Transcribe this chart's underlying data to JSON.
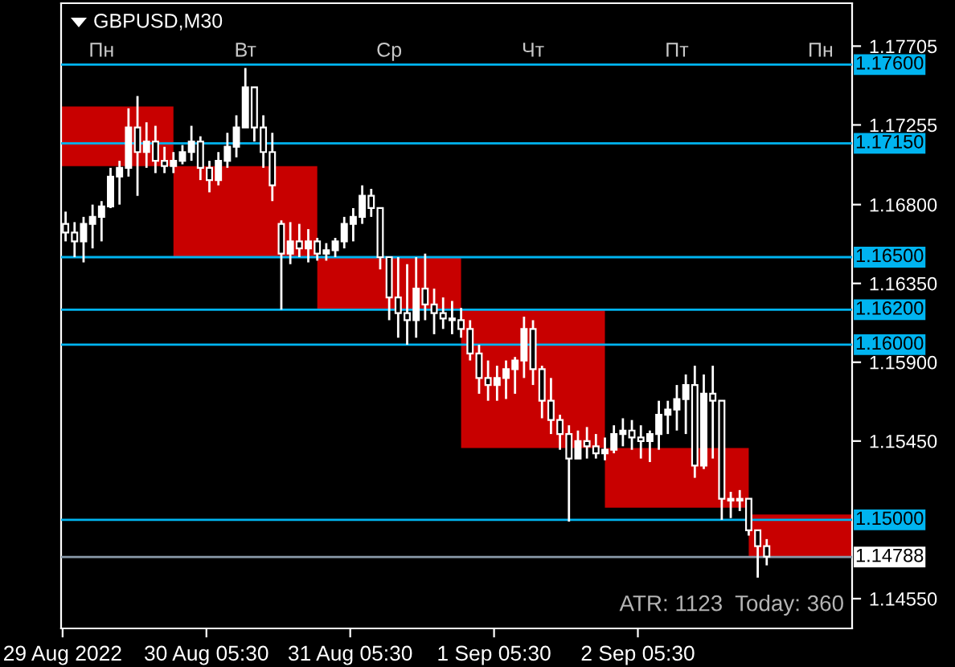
{
  "chart_data": {
    "type": "candlestick",
    "title": "GBPUSD,M30",
    "annotations": [
      "Пн",
      "Вт",
      "Ср",
      "Чт",
      "Пт",
      "Пн",
      "ATR: 1123  Today: 360"
    ],
    "xlim": [
      "2022-08-29T05:15",
      "2022-09-03T17:15"
    ],
    "xticks": [
      {
        "value": "2022-08-29T05:30",
        "label": "29 Aug 2022"
      },
      {
        "value": "2022-08-30T05:30",
        "label": "30 Aug 05:30"
      },
      {
        "value": "2022-08-31T05:30",
        "label": "31 Aug 05:30"
      },
      {
        "value": "2022-09-01T05:30",
        "label": "1 Sep 05:30"
      },
      {
        "value": "2022-09-02T05:30",
        "label": "2 Sep 05:30"
      }
    ],
    "ylim": [
      1.1438,
      1.1795
    ],
    "yticks": [
      {
        "value": 1.17705,
        "label": "1.17705"
      },
      {
        "value": 1.17255,
        "label": "1.17255"
      },
      {
        "value": 1.168,
        "label": "1.16800"
      },
      {
        "value": 1.1635,
        "label": "1.16350"
      },
      {
        "value": 1.159,
        "label": "1.15900"
      },
      {
        "value": 1.1545,
        "label": "1.15450"
      },
      {
        "value": 1.1455,
        "label": "1.14550"
      }
    ],
    "ref_lines": [
      {
        "axis": "y",
        "value": 1.176,
        "label": "1.17600",
        "color": "#00b4f0"
      },
      {
        "axis": "y",
        "value": 1.1715,
        "label": "1.17150",
        "color": "#00b4f0"
      },
      {
        "axis": "y",
        "value": 1.165,
        "label": "1.16500",
        "color": "#00b4f0"
      },
      {
        "axis": "y",
        "value": 1.162,
        "label": "1.16200",
        "color": "#00b4f0"
      },
      {
        "axis": "y",
        "value": 1.16,
        "label": "1.16000",
        "color": "#00b4f0"
      },
      {
        "axis": "y",
        "value": 1.15,
        "label": "1.15000",
        "color": "#00b4f0"
      },
      {
        "axis": "y",
        "value": 1.14788,
        "label": "1.14788",
        "color": "#8a9aaa"
      }
    ],
    "grid": false,
    "legend": false,
    "series": [
      {
        "type": "bar",
        "color": "#c80000",
        "x": [
          "2022-08-29T12:00",
          "2022-08-30T12:00",
          "2022-08-31T12:00",
          "2022-09-01T12:00",
          "2022-09-02T12:00",
          "2022-09-03T12:00"
        ],
        "base": [
          1.1702,
          1.165,
          1.162,
          1.1541,
          1.1507,
          1.1479
        ],
        "values": [
          0.0034,
          0.0052,
          0.003,
          0.0079,
          0.0034,
          0.0024
        ]
      },
      {
        "color": "#ffffff",
        "x": [
          "2022-08-29T06:00",
          "2022-08-29T07:30",
          "2022-08-29T09:00",
          "2022-08-29T10:30",
          "2022-08-29T12:00",
          "2022-08-29T13:30",
          "2022-08-29T15:00",
          "2022-08-29T16:30",
          "2022-08-29T18:00",
          "2022-08-29T19:30",
          "2022-08-29T21:00",
          "2022-08-29T22:30",
          "2022-08-30T00:00",
          "2022-08-30T01:30",
          "2022-08-30T03:00",
          "2022-08-30T04:30",
          "2022-08-30T06:00",
          "2022-08-30T07:30",
          "2022-08-30T09:00",
          "2022-08-30T10:30",
          "2022-08-30T12:00",
          "2022-08-30T13:30",
          "2022-08-30T15:00",
          "2022-08-30T16:30",
          "2022-08-30T18:00",
          "2022-08-30T19:30",
          "2022-08-30T21:00",
          "2022-08-30T22:30",
          "2022-08-31T00:00",
          "2022-08-31T01:30",
          "2022-08-31T03:00",
          "2022-08-31T04:30",
          "2022-08-31T06:00",
          "2022-08-31T07:30",
          "2022-08-31T09:00",
          "2022-08-31T10:30",
          "2022-08-31T12:00",
          "2022-08-31T13:30",
          "2022-08-31T15:00",
          "2022-08-31T16:30",
          "2022-08-31T18:00",
          "2022-08-31T19:30",
          "2022-08-31T21:00",
          "2022-08-31T22:30",
          "2022-09-01T00:00",
          "2022-09-01T01:30",
          "2022-09-01T03:00",
          "2022-09-01T04:30",
          "2022-09-01T06:00",
          "2022-09-01T07:30",
          "2022-09-01T09:00",
          "2022-09-01T10:30",
          "2022-09-01T12:00",
          "2022-09-01T13:30",
          "2022-09-01T15:00",
          "2022-09-01T16:30",
          "2022-09-01T18:00",
          "2022-09-01T19:30",
          "2022-09-01T21:00",
          "2022-09-01T22:30",
          "2022-09-02T00:00",
          "2022-09-02T01:30",
          "2022-09-02T03:00",
          "2022-09-02T04:30",
          "2022-09-02T06:00",
          "2022-09-02T07:30",
          "2022-09-02T09:00",
          "2022-09-02T10:30",
          "2022-09-02T12:00",
          "2022-09-02T13:30",
          "2022-09-02T15:00",
          "2022-09-02T16:30",
          "2022-09-02T18:00",
          "2022-09-02T19:30",
          "2022-09-02T21:00",
          "2022-09-02T22:30",
          "2022-09-03T00:00",
          "2022-09-03T01:30",
          "2022-09-03T03:00"
        ],
        "ohlc": [
          [
            1.1669,
            1.1676,
            1.1659,
            1.1664
          ],
          [
            1.1664,
            1.167,
            1.165,
            1.1659
          ],
          [
            1.1659,
            1.1673,
            1.1647,
            1.1669
          ],
          [
            1.1669,
            1.168,
            1.1655,
            1.1673
          ],
          [
            1.1673,
            1.1682,
            1.1659,
            1.1679
          ],
          [
            1.1679,
            1.1701,
            1.1678,
            1.1696
          ],
          [
            1.1696,
            1.1705,
            1.168,
            1.1701
          ],
          [
            1.1701,
            1.1735,
            1.1696,
            1.1724
          ],
          [
            1.1724,
            1.1742,
            1.1685,
            1.171
          ],
          [
            1.171,
            1.1727,
            1.1701,
            1.1716
          ],
          [
            1.1716,
            1.1725,
            1.1698,
            1.1705
          ],
          [
            1.1705,
            1.1713,
            1.1698,
            1.1702
          ],
          [
            1.1702,
            1.171,
            1.1698,
            1.1705
          ],
          [
            1.1705,
            1.1714,
            1.1703,
            1.171
          ],
          [
            1.171,
            1.1725,
            1.1705,
            1.1716
          ],
          [
            1.1716,
            1.1719,
            1.1694,
            1.1701
          ],
          [
            1.1701,
            1.1705,
            1.1687,
            1.1694
          ],
          [
            1.1694,
            1.171,
            1.1691,
            1.1705
          ],
          [
            1.1705,
            1.1721,
            1.1701,
            1.1713
          ],
          [
            1.1713,
            1.1731,
            1.1707,
            1.1724
          ],
          [
            1.1724,
            1.1758,
            1.1724,
            1.1747
          ],
          [
            1.1747,
            1.1747,
            1.1716,
            1.1724
          ],
          [
            1.1724,
            1.1731,
            1.1701,
            1.171
          ],
          [
            1.171,
            1.1721,
            1.1682,
            1.1691
          ],
          [
            1.1669,
            1.1671,
            1.162,
            1.1652
          ],
          [
            1.1652,
            1.167,
            1.1646,
            1.1659
          ],
          [
            1.1659,
            1.1669,
            1.165,
            1.1655
          ],
          [
            1.1655,
            1.1666,
            1.1647,
            1.1659
          ],
          [
            1.1659,
            1.1661,
            1.1648,
            1.1652
          ],
          [
            1.1652,
            1.1658,
            1.1648,
            1.1654
          ],
          [
            1.1654,
            1.1661,
            1.165,
            1.1659
          ],
          [
            1.1659,
            1.1673,
            1.1655,
            1.1669
          ],
          [
            1.1669,
            1.1678,
            1.1659,
            1.1673
          ],
          [
            1.1673,
            1.1691,
            1.1669,
            1.1685
          ],
          [
            1.1685,
            1.1689,
            1.1673,
            1.1678
          ],
          [
            1.1678,
            1.1678,
            1.1643,
            1.165
          ],
          [
            1.165,
            1.165,
            1.1614,
            1.1627
          ],
          [
            1.1627,
            1.165,
            1.1604,
            1.1618
          ],
          [
            1.1618,
            1.1646,
            1.16,
            1.1614
          ],
          [
            1.1614,
            1.165,
            1.1604,
            1.1632
          ],
          [
            1.1632,
            1.1652,
            1.1614,
            1.1623
          ],
          [
            1.1623,
            1.1632,
            1.1606,
            1.1618
          ],
          [
            1.1618,
            1.1627,
            1.1609,
            1.1615
          ],
          [
            1.1615,
            1.1625,
            1.1606,
            1.1614
          ],
          [
            1.1614,
            1.1621,
            1.1604,
            1.1609
          ],
          [
            1.1609,
            1.1614,
            1.1591,
            1.1595
          ],
          [
            1.1595,
            1.16,
            1.1572,
            1.1581
          ],
          [
            1.1581,
            1.1591,
            1.1568,
            1.1577
          ],
          [
            1.1577,
            1.1588,
            1.1568,
            1.1581
          ],
          [
            1.1581,
            1.1591,
            1.1569,
            1.1586
          ],
          [
            1.1586,
            1.1593,
            1.1572,
            1.1591
          ],
          [
            1.1591,
            1.1616,
            1.1581,
            1.1609
          ],
          [
            1.1609,
            1.1614,
            1.1577,
            1.1586
          ],
          [
            1.1586,
            1.1588,
            1.1558,
            1.1568
          ],
          [
            1.1568,
            1.1581,
            1.1549,
            1.1557
          ],
          [
            1.1557,
            1.156,
            1.154,
            1.1549
          ],
          [
            1.1549,
            1.1554,
            1.1499,
            1.1535
          ],
          [
            1.1535,
            1.1551,
            1.1535,
            1.1545
          ],
          [
            1.1545,
            1.1553,
            1.1535,
            1.1542
          ],
          [
            1.1542,
            1.1549,
            1.1535,
            1.1538
          ],
          [
            1.1538,
            1.1547,
            1.1534,
            1.154
          ],
          [
            1.154,
            1.1554,
            1.1538,
            1.1549
          ],
          [
            1.1549,
            1.1558,
            1.1542,
            1.1551
          ],
          [
            1.1551,
            1.1557,
            1.154,
            1.1547
          ],
          [
            1.1547,
            1.1554,
            1.1535,
            1.1545
          ],
          [
            1.1545,
            1.1551,
            1.1533,
            1.1549
          ],
          [
            1.1549,
            1.1568,
            1.154,
            1.156
          ],
          [
            1.156,
            1.1568,
            1.1549,
            1.1563
          ],
          [
            1.1563,
            1.1577,
            1.1551,
            1.1569
          ],
          [
            1.1569,
            1.1583,
            1.1549,
            1.1577
          ],
          [
            1.1577,
            1.1588,
            1.1524,
            1.1531
          ],
          [
            1.1531,
            1.1583,
            1.1529,
            1.1572
          ],
          [
            1.1572,
            1.1588,
            1.1535,
            1.1568
          ],
          [
            1.1568,
            1.1568,
            1.15,
            1.1512
          ],
          [
            1.1512,
            1.1516,
            1.1501,
            1.1511
          ],
          [
            1.1511,
            1.1517,
            1.1505,
            1.1512
          ],
          [
            1.1512,
            1.1512,
            1.1491,
            1.1494
          ],
          [
            1.1494,
            1.1494,
            1.1467,
            1.1485
          ],
          [
            1.1485,
            1.1489,
            1.1474,
            1.1479
          ]
        ]
      }
    ]
  }
}
